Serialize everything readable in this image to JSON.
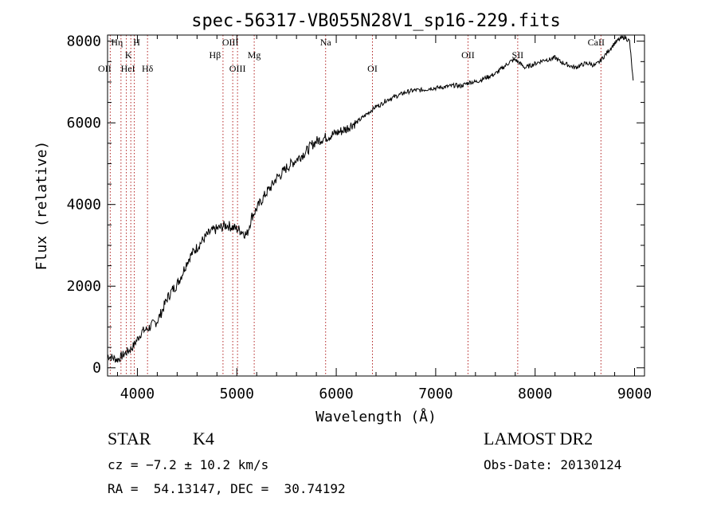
{
  "chart_data": {
    "type": "line",
    "title": "spec-56317-VB055N28V1_sp16-229.fits",
    "xlabel": "Wavelength (Å)",
    "ylabel": "Flux (relative)",
    "xlim": [
      3700,
      9100
    ],
    "ylim": [
      -200,
      8150
    ],
    "x_ticks": [
      4000,
      5000,
      6000,
      7000,
      8000,
      9000
    ],
    "y_ticks": [
      0,
      2000,
      4000,
      6000,
      8000
    ],
    "series": [
      {
        "x": [
          3700,
          3750,
          3800,
          3850,
          3900,
          3950,
          4000,
          4050,
          4100,
          4150,
          4200,
          4250,
          4300,
          4350,
          4400,
          4450,
          4500,
          4550,
          4600,
          4650,
          4700,
          4750,
          4800,
          4850,
          4900,
          4950,
          5000,
          5050,
          5100,
          5150,
          5200,
          5250,
          5300,
          5350,
          5400,
          5450,
          5500,
          5550,
          5600,
          5650,
          5700,
          5750,
          5800,
          5850,
          5900,
          5950,
          6000,
          6050,
          6100,
          6150,
          6200,
          6250,
          6300,
          6350,
          6400,
          6450,
          6500,
          6550,
          6600,
          6650,
          6700,
          6750,
          6800,
          6850,
          6900,
          6950,
          7000,
          7050,
          7100,
          7150,
          7200,
          7250,
          7300,
          7350,
          7400,
          7450,
          7500,
          7550,
          7600,
          7650,
          7700,
          7750,
          7800,
          7850,
          7900,
          7950,
          8000,
          8050,
          8100,
          8150,
          8200,
          8250,
          8300,
          8350,
          8400,
          8450,
          8500,
          8550,
          8600,
          8650,
          8700,
          8750,
          8800,
          8850,
          8900,
          8950,
          8990
        ],
        "y": [
          300,
          250,
          200,
          300,
          400,
          500,
          700,
          900,
          950,
          1050,
          1150,
          1400,
          1700,
          1900,
          2050,
          2300,
          2600,
          2800,
          2950,
          3100,
          3250,
          3350,
          3400,
          3450,
          3500,
          3450,
          3400,
          3350,
          3250,
          3700,
          3900,
          4100,
          4300,
          4450,
          4650,
          4750,
          4900,
          5000,
          5100,
          5200,
          5300,
          5450,
          5550,
          5600,
          5650,
          5700,
          5750,
          5800,
          5850,
          5950,
          6000,
          6100,
          6200,
          6300,
          6400,
          6450,
          6550,
          6600,
          6650,
          6700,
          6750,
          6780,
          6800,
          6800,
          6820,
          6850,
          6850,
          6870,
          6880,
          6900,
          6920,
          6900,
          6950,
          7000,
          7000,
          7050,
          7100,
          7150,
          7200,
          7300,
          7400,
          7500,
          7550,
          7450,
          7350,
          7400,
          7450,
          7500,
          7550,
          7550,
          7600,
          7500,
          7450,
          7400,
          7350,
          7400,
          7450,
          7450,
          7400,
          7500,
          7650,
          7800,
          7950,
          8050,
          8100,
          8000,
          6900
        ]
      }
    ],
    "line_markers": [
      {
        "label": "OII",
        "x": 3727
      },
      {
        "label": "Hη",
        "x": 3835
      },
      {
        "label": "HeI",
        "x": 3889
      },
      {
        "label": "K",
        "x": 3934
      },
      {
        "label": "H",
        "x": 3969
      },
      {
        "label": "Hδ",
        "x": 4102
      },
      {
        "label": "Hβ",
        "x": 4861
      },
      {
        "label": "OIII",
        "x": 4959
      },
      {
        "label": "OIII",
        "x": 5007
      },
      {
        "label": "Mg",
        "x": 5175
      },
      {
        "label": "Na",
        "x": 5893
      },
      {
        "label": "OI",
        "x": 6364
      },
      {
        "label": "OII",
        "x": 7325
      },
      {
        "label": "SII",
        "x": 7825
      },
      {
        "label": "CaII",
        "x": 8662
      }
    ],
    "grid": false
  },
  "info": {
    "object_class": "STAR",
    "subclass": "K4",
    "cz": "cz = −7.2 ± 10.2 km/s",
    "coords": "RA =  54.13147, DEC =  30.74192",
    "survey": "LAMOST DR2",
    "obs_date": "Obs-Date: 20130124"
  }
}
